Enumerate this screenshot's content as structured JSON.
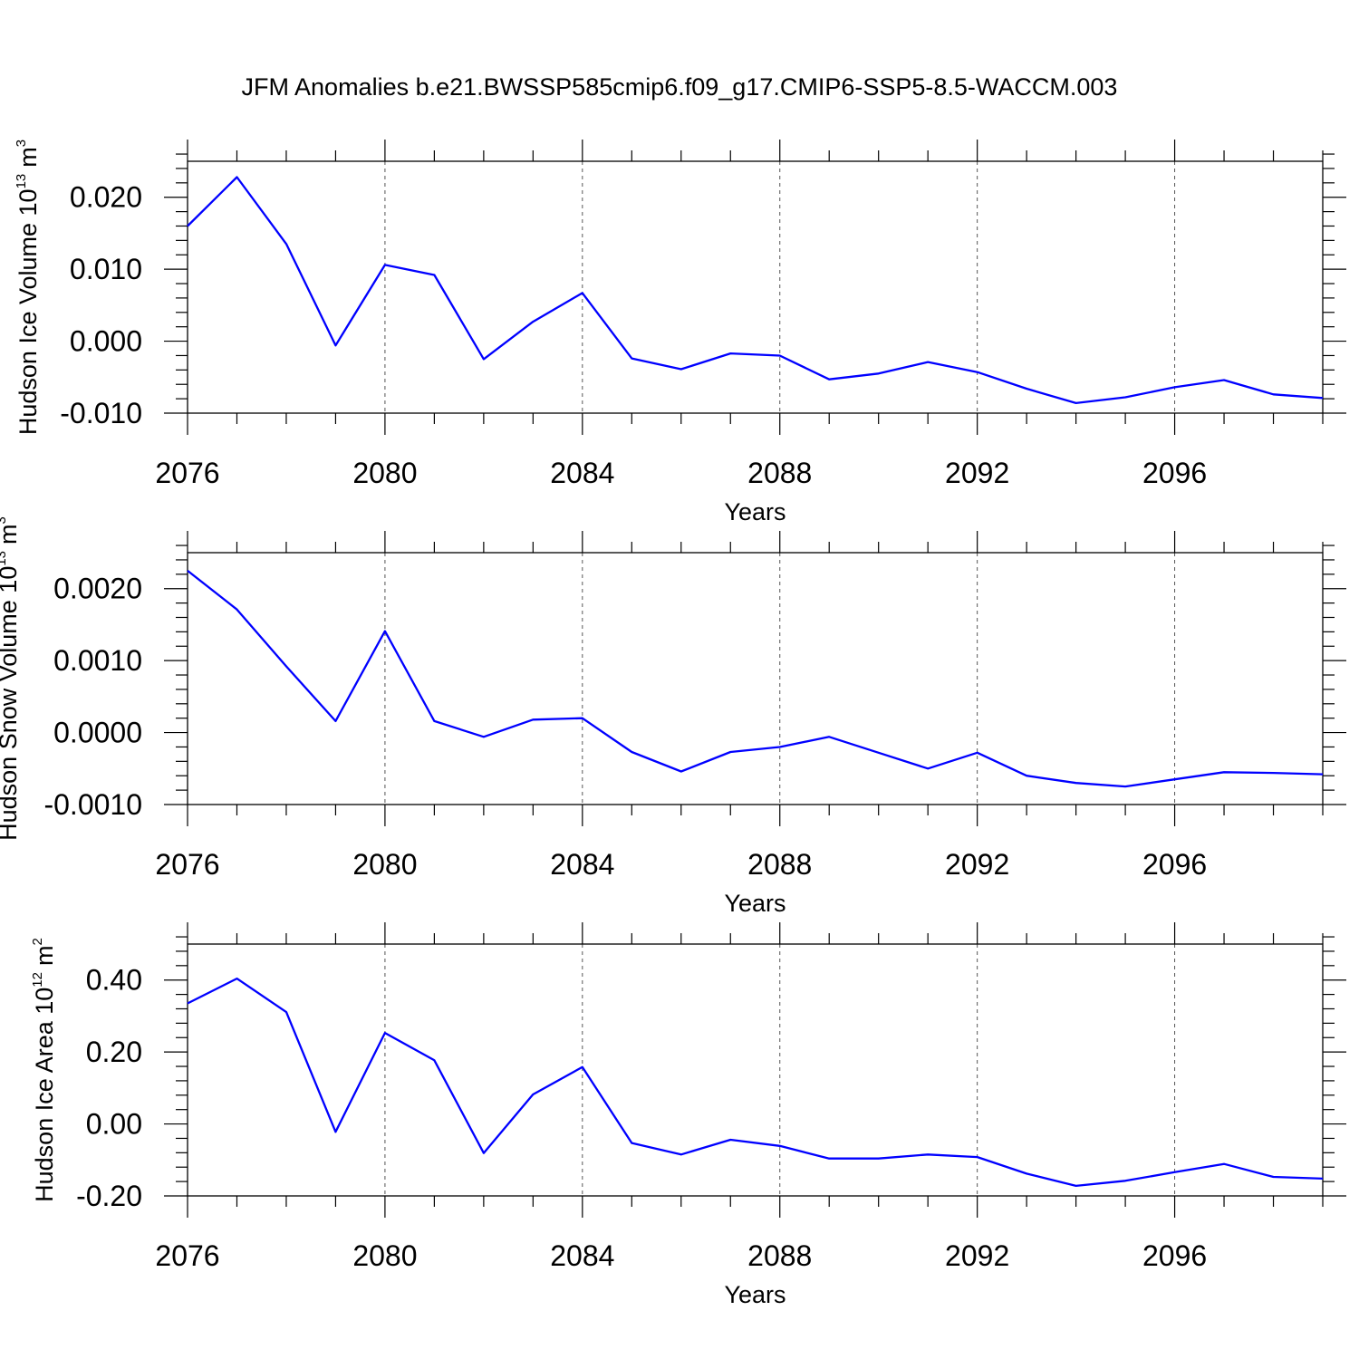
{
  "title": "JFM Anomalies b.e21.BWSSP585cmip6.f09_g17.CMIP6-SSP5-8.5-WACCM.003",
  "colors": {
    "series": "#0000ff",
    "axes": "#000000",
    "grid": "#555555"
  },
  "chart_data": [
    {
      "type": "line",
      "ylabel": {
        "main": "Hudson Ice Volume 10",
        "exp": "13",
        "unit": "m",
        "unit_exp": "3"
      },
      "xlabel": "Years",
      "xlim": [
        2076,
        2099
      ],
      "ylim": [
        -0.01,
        0.025
      ],
      "xticks": [
        2076,
        2080,
        2084,
        2088,
        2092,
        2096
      ],
      "xtick_labels": [
        "2076",
        "2080",
        "2084",
        "2088",
        "2092",
        "2096"
      ],
      "yticks": [
        -0.01,
        0.0,
        0.01,
        0.02
      ],
      "ytick_labels": [
        "-0.010",
        "0.000",
        "0.010",
        "0.020"
      ],
      "grid": "vertical dashed at major x ticks",
      "x": [
        2076,
        2077,
        2078,
        2079,
        2080,
        2081,
        2082,
        2083,
        2084,
        2085,
        2086,
        2087,
        2088,
        2089,
        2090,
        2091,
        2092,
        2093,
        2094,
        2095,
        2096,
        2097,
        2098,
        2099
      ],
      "series": [
        {
          "values": [
            0.016,
            0.0228,
            0.0135,
            -0.0006,
            0.0106,
            0.0092,
            -0.0025,
            0.0027,
            0.0067,
            -0.0024,
            -0.0039,
            -0.0017,
            -0.002,
            -0.0053,
            -0.0045,
            -0.0029,
            -0.0043,
            -0.0066,
            -0.0086,
            -0.0078,
            -0.0064,
            -0.0054,
            -0.0074,
            -0.0079
          ]
        }
      ]
    },
    {
      "type": "line",
      "ylabel": {
        "main": "Hudson Snow Volume 10",
        "exp": "13",
        "unit": "m",
        "unit_exp": "3"
      },
      "xlabel": "Years",
      "xlim": [
        2076,
        2099
      ],
      "ylim": [
        -0.001,
        0.0025
      ],
      "xticks": [
        2076,
        2080,
        2084,
        2088,
        2092,
        2096
      ],
      "xtick_labels": [
        "2076",
        "2080",
        "2084",
        "2088",
        "2092",
        "2096"
      ],
      "yticks": [
        -0.001,
        0.0,
        0.001,
        0.002
      ],
      "ytick_labels": [
        "-0.0010",
        "0.0000",
        "0.0010",
        "0.0020"
      ],
      "grid": "vertical dashed at major x ticks",
      "x": [
        2076,
        2077,
        2078,
        2079,
        2080,
        2081,
        2082,
        2083,
        2084,
        2085,
        2086,
        2087,
        2088,
        2089,
        2090,
        2091,
        2092,
        2093,
        2094,
        2095,
        2096,
        2097,
        2098,
        2099
      ],
      "series": [
        {
          "values": [
            0.00225,
            0.00171,
            0.00092,
            0.00016,
            0.00141,
            0.00016,
            -6e-05,
            0.00018,
            0.0002,
            -0.00027,
            -0.00054,
            -0.00027,
            -0.0002,
            -6e-05,
            -0.00028,
            -0.0005,
            -0.00028,
            -0.0006,
            -0.0007,
            -0.00075,
            -0.00065,
            -0.00055,
            -0.00056,
            -0.00058
          ]
        }
      ]
    },
    {
      "type": "line",
      "ylabel": {
        "main": "Hudson Ice Area 10",
        "exp": "12",
        "unit": "m",
        "unit_exp": "2"
      },
      "xlabel": "Years",
      "xlim": [
        2076,
        2099
      ],
      "ylim": [
        -0.2,
        0.5
      ],
      "xticks": [
        2076,
        2080,
        2084,
        2088,
        2092,
        2096
      ],
      "xtick_labels": [
        "2076",
        "2080",
        "2084",
        "2088",
        "2092",
        "2096"
      ],
      "yticks": [
        -0.2,
        0.0,
        0.2,
        0.4
      ],
      "ytick_labels": [
        "-0.20",
        "0.00",
        "0.20",
        "0.40"
      ],
      "grid": "vertical dashed at major x ticks",
      "x": [
        2076,
        2077,
        2078,
        2079,
        2080,
        2081,
        2082,
        2083,
        2084,
        2085,
        2086,
        2087,
        2088,
        2089,
        2090,
        2091,
        2092,
        2093,
        2094,
        2095,
        2096,
        2097,
        2098,
        2099
      ],
      "series": [
        {
          "values": [
            0.335,
            0.404,
            0.311,
            -0.022,
            0.253,
            0.177,
            -0.081,
            0.082,
            0.158,
            -0.053,
            -0.085,
            -0.044,
            -0.061,
            -0.096,
            -0.096,
            -0.085,
            -0.092,
            -0.138,
            -0.172,
            -0.158,
            -0.134,
            -0.111,
            -0.147,
            -0.152
          ]
        }
      ]
    }
  ]
}
